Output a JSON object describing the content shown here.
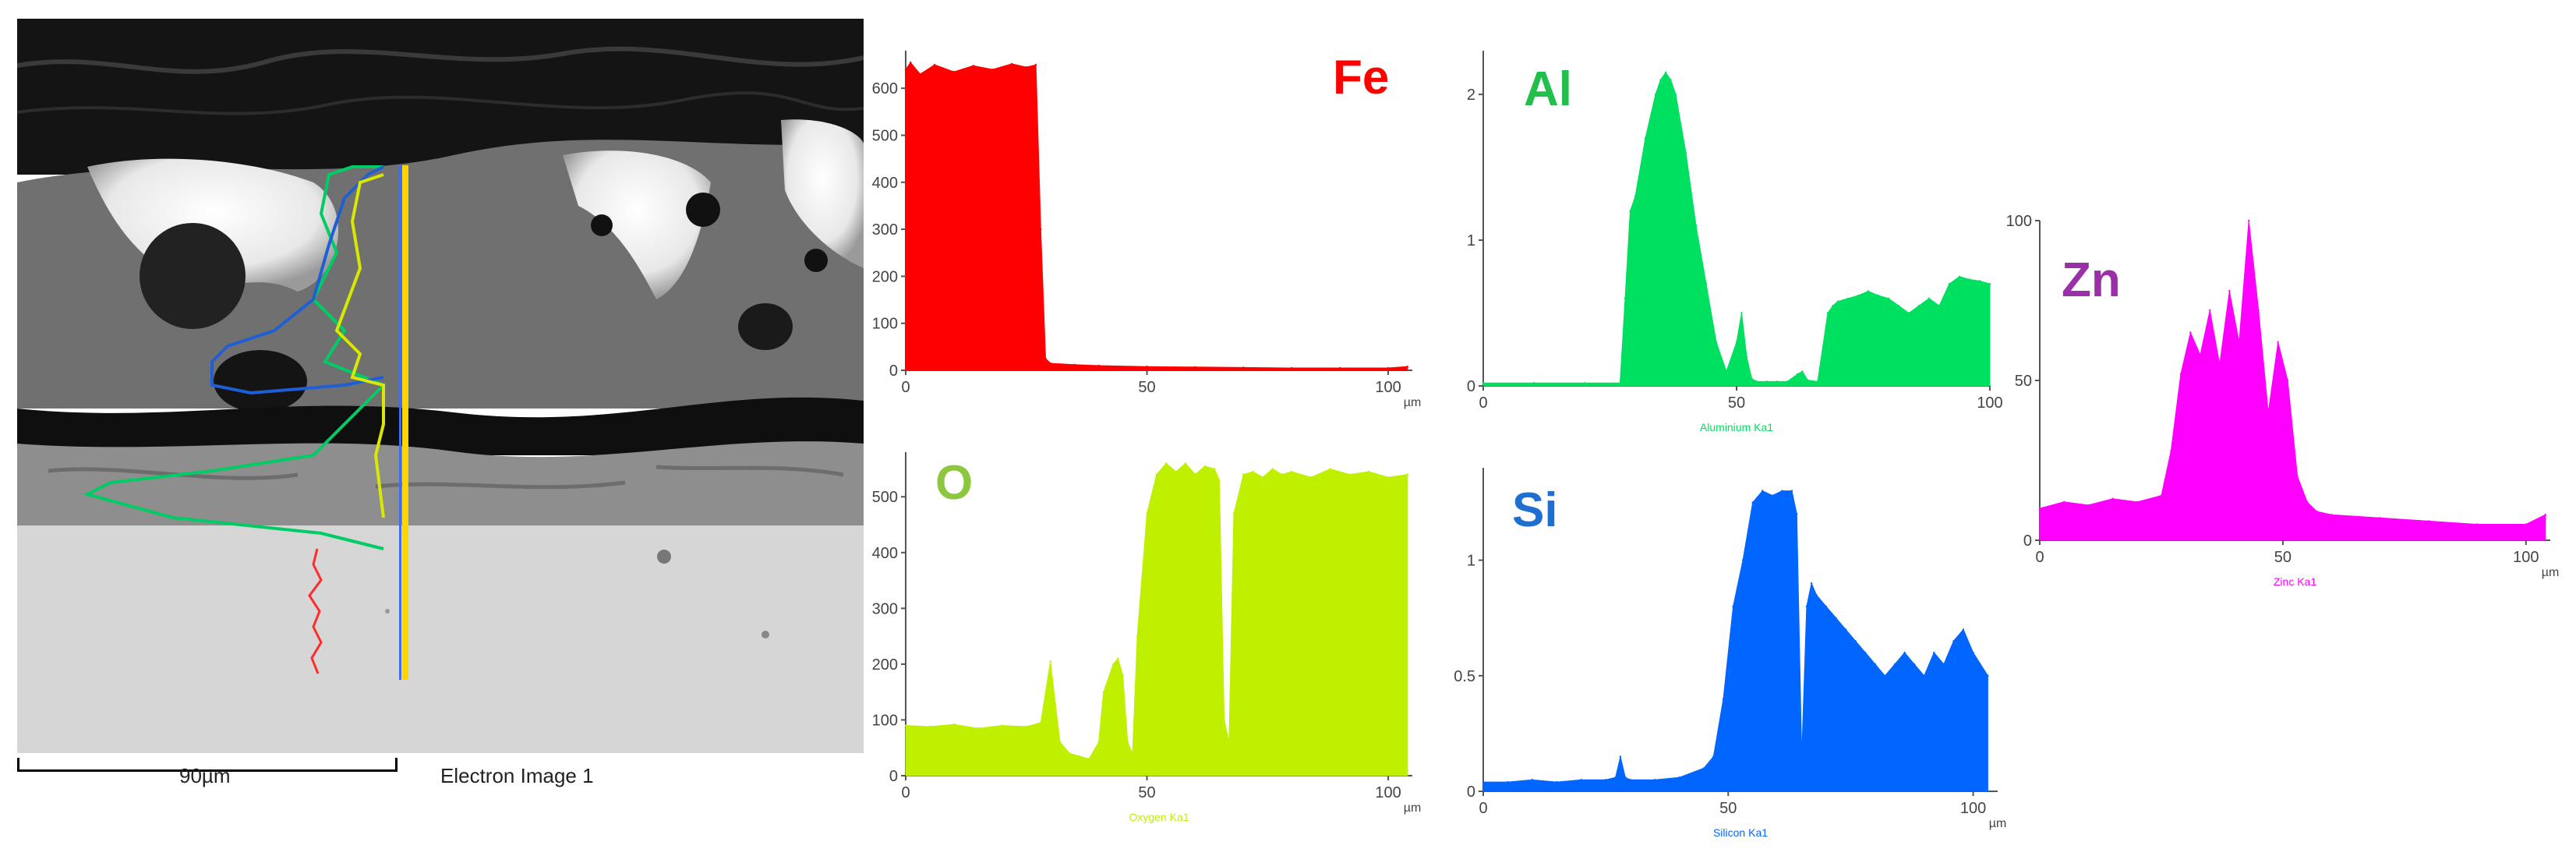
{
  "sem_image": {
    "scale_label": "90µm",
    "caption": "Electron Image 1",
    "colors": {
      "substrate": "#d6d6d6",
      "coating_gray": "#6f6f6f",
      "bright_phase": "#f2f2f2",
      "oxide_layer": "#8c8c8c",
      "top_dark": "#141414",
      "linescan_marker": "#ffd400"
    }
  },
  "chart_data": [
    {
      "type": "area",
      "panel": "Fe",
      "element": "Fe",
      "color": "#ff0000",
      "label_color": "#ff0000",
      "xlabel": "µm",
      "xlim": [
        0,
        105
      ],
      "ylim": [
        0,
        680
      ],
      "xticks": [
        0,
        50,
        100
      ],
      "yticks": [
        0,
        100,
        200,
        300,
        400,
        500,
        600
      ],
      "ytick_labels": [
        "0",
        "100",
        "200",
        "300",
        "400",
        "500",
        "600"
      ],
      "x": [
        0,
        1,
        3,
        6,
        10,
        14,
        18,
        22,
        25,
        27,
        28,
        29,
        30,
        35,
        40,
        50,
        60,
        70,
        80,
        90,
        100,
        104
      ],
      "y": [
        640,
        655,
        630,
        650,
        635,
        648,
        640,
        652,
        645,
        650,
        300,
        25,
        15,
        12,
        10,
        8,
        7,
        6,
        5,
        5,
        5,
        8
      ]
    },
    {
      "type": "area",
      "panel": "Al",
      "element": "Al",
      "color": "#00e060",
      "label_color": "#22c04a",
      "xlabel": "",
      "series_label": "Aluminium Ka1",
      "xlim": [
        0,
        100
      ],
      "ylim": [
        0,
        2.3
      ],
      "xticks": [
        0,
        50,
        100
      ],
      "yticks": [
        0,
        1,
        2
      ],
      "ytick_labels": [
        "0",
        "1",
        "2"
      ],
      "x": [
        0,
        10,
        20,
        27,
        28,
        29,
        30,
        32,
        34,
        35,
        36,
        37,
        38,
        40,
        42,
        44,
        46,
        48,
        50,
        51,
        52,
        53,
        54,
        56,
        58,
        60,
        62,
        63,
        64,
        66,
        68,
        69,
        70,
        72,
        74,
        76,
        78,
        80,
        82,
        84,
        86,
        88,
        90,
        92,
        94,
        96,
        98,
        100
      ],
      "y": [
        0.02,
        0.02,
        0.02,
        0.02,
        0.6,
        1.2,
        1.3,
        1.7,
        2.0,
        2.1,
        2.15,
        2.1,
        2.0,
        1.6,
        1.1,
        0.7,
        0.3,
        0.1,
        0.3,
        0.5,
        0.2,
        0.05,
        0.03,
        0.03,
        0.03,
        0.03,
        0.08,
        0.1,
        0.04,
        0.03,
        0.5,
        0.55,
        0.58,
        0.6,
        0.62,
        0.65,
        0.62,
        0.6,
        0.55,
        0.5,
        0.55,
        0.6,
        0.55,
        0.7,
        0.75,
        0.73,
        0.72,
        0.7
      ]
    },
    {
      "type": "area",
      "panel": "Zn",
      "element": "Zn",
      "color": "#ff00ff",
      "label_color": "#9a2fa8",
      "xlabel": "µm",
      "series_label": "Zinc Ka1",
      "xlim": [
        0,
        105
      ],
      "ylim": [
        0,
        100
      ],
      "xticks": [
        0,
        50,
        100
      ],
      "yticks": [
        0,
        50,
        100
      ],
      "ytick_labels": [
        "0",
        "50",
        "100"
      ],
      "x": [
        0,
        5,
        10,
        15,
        20,
        25,
        27,
        29,
        31,
        33,
        35,
        37,
        39,
        41,
        43,
        45,
        47,
        49,
        51,
        53,
        55,
        57,
        60,
        70,
        80,
        90,
        100,
        104
      ],
      "y": [
        10,
        12,
        11,
        13,
        12,
        14,
        28,
        52,
        65,
        58,
        72,
        55,
        78,
        62,
        100,
        72,
        40,
        62,
        50,
        20,
        12,
        9,
        8,
        7,
        6,
        5,
        5,
        8
      ]
    },
    {
      "type": "area",
      "panel": "O",
      "element": "O",
      "color": "#bff000",
      "label_color": "#8dc63f",
      "xlabel": "µm",
      "series_label": "Oxygen Ka1",
      "xlim": [
        0,
        105
      ],
      "ylim": [
        0,
        580
      ],
      "xticks": [
        0,
        50,
        100
      ],
      "yticks": [
        0,
        100,
        200,
        300,
        400,
        500
      ],
      "ytick_labels": [
        "0",
        "100",
        "200",
        "300",
        "400",
        "500"
      ],
      "x": [
        0,
        5,
        10,
        15,
        20,
        25,
        28,
        29,
        30,
        31,
        32,
        34,
        36,
        38,
        40,
        41,
        43,
        44,
        45,
        46,
        47,
        48,
        50,
        52,
        54,
        56,
        58,
        60,
        62,
        64,
        65,
        66,
        67,
        68,
        70,
        72,
        74,
        76,
        78,
        80,
        84,
        88,
        92,
        96,
        100,
        104
      ],
      "y": [
        90,
        88,
        92,
        85,
        90,
        88,
        95,
        150,
        205,
        130,
        60,
        40,
        35,
        30,
        60,
        150,
        200,
        210,
        180,
        60,
        40,
        250,
        470,
        540,
        560,
        545,
        560,
        540,
        555,
        550,
        530,
        100,
        60,
        470,
        540,
        545,
        535,
        550,
        540,
        545,
        535,
        550,
        540,
        545,
        535,
        540
      ]
    },
    {
      "type": "area",
      "panel": "Si",
      "element": "Si",
      "color": "#0066ff",
      "label_color": "#1e6fd0",
      "xlabel": "µm",
      "series_label": "Silicon Ka1",
      "xlim": [
        0,
        105
      ],
      "ylim": [
        0,
        1.4
      ],
      "xticks": [
        0,
        50,
        100
      ],
      "yticks": [
        0,
        0.5,
        1
      ],
      "ytick_labels": [
        "0",
        "0.5",
        "1"
      ],
      "x": [
        0,
        5,
        10,
        15,
        20,
        25,
        27,
        28,
        29,
        30,
        35,
        40,
        45,
        47,
        49,
        51,
        53,
        55,
        57,
        59,
        61,
        63,
        64,
        65,
        66,
        67,
        68,
        70,
        72,
        74,
        76,
        78,
        80,
        82,
        84,
        86,
        88,
        90,
        92,
        94,
        96,
        98,
        100,
        103
      ],
      "y": [
        0.04,
        0.04,
        0.05,
        0.04,
        0.05,
        0.05,
        0.06,
        0.15,
        0.06,
        0.05,
        0.05,
        0.06,
        0.1,
        0.15,
        0.4,
        0.8,
        1.0,
        1.25,
        1.3,
        1.28,
        1.3,
        1.3,
        1.2,
        0.15,
        0.8,
        0.9,
        0.85,
        0.8,
        0.75,
        0.7,
        0.65,
        0.6,
        0.55,
        0.5,
        0.55,
        0.6,
        0.55,
        0.5,
        0.6,
        0.55,
        0.65,
        0.7,
        0.6,
        0.5
      ]
    }
  ]
}
